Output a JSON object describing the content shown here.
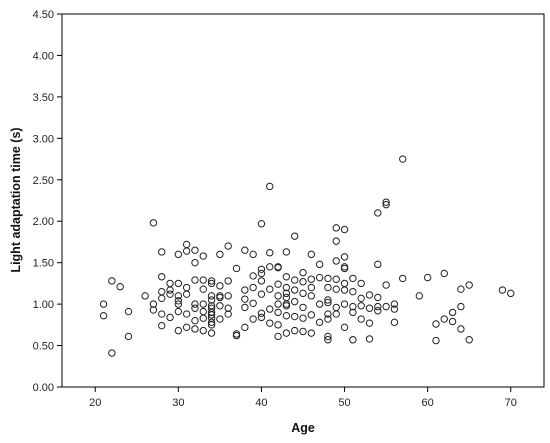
{
  "chart_data": {
    "type": "scatter",
    "title": "",
    "xlabel": "Age",
    "ylabel": "Light adaptation time (s)",
    "xlim": [
      16,
      74
    ],
    "ylim": [
      0,
      4.5
    ],
    "xticks": [
      20,
      30,
      40,
      50,
      60,
      70
    ],
    "yticks": [
      "0.00",
      "0.50",
      "1.00",
      "1.50",
      "2.00",
      "2.50",
      "3.00",
      "3.50",
      "4.00",
      "4.50"
    ],
    "grid": false,
    "legend": "none",
    "colors": {
      "marker_stroke": "#222222",
      "axis": "#000000",
      "plot_background": "#ffffff"
    },
    "series": [
      {
        "x": [
          21,
          21,
          22,
          22,
          23,
          24,
          24,
          26,
          27,
          27,
          27,
          28,
          28,
          28,
          28,
          28,
          28,
          29,
          29,
          29,
          29,
          30,
          30,
          30,
          30,
          30,
          30,
          30,
          31,
          31,
          31,
          31,
          31,
          31,
          32,
          32,
          32,
          32,
          32,
          32,
          32,
          33,
          33,
          33,
          33,
          33,
          33,
          33,
          34,
          34,
          34,
          34,
          34,
          34,
          34,
          34,
          34,
          34,
          34,
          34,
          35,
          35,
          35,
          35,
          35,
          35,
          36,
          36,
          36,
          36,
          36,
          37,
          37,
          37,
          38,
          38,
          38,
          38,
          38,
          39,
          39,
          39,
          39,
          39,
          40,
          40,
          40,
          40,
          40,
          40,
          40,
          41,
          41,
          41,
          41,
          41,
          41,
          42,
          42,
          42,
          42,
          42,
          42,
          42,
          42,
          43,
          43,
          43,
          43,
          43,
          43,
          43,
          43,
          43,
          44,
          44,
          44,
          44,
          44,
          44,
          45,
          45,
          45,
          45,
          45,
          45,
          46,
          46,
          46,
          46,
          46,
          46,
          47,
          47,
          47,
          47,
          48,
          48,
          48,
          48,
          48,
          48,
          48,
          48,
          49,
          49,
          49,
          49,
          49,
          49,
          49,
          50,
          50,
          50,
          50,
          50,
          50,
          50,
          50,
          51,
          51,
          51,
          51,
          51,
          52,
          52,
          52,
          52,
          53,
          53,
          53,
          53,
          54,
          54,
          54,
          54,
          54,
          55,
          55,
          55,
          55,
          56,
          56,
          56,
          57,
          57,
          59,
          60,
          61,
          61,
          62,
          62,
          63,
          63,
          64,
          64,
          64,
          65,
          65,
          69,
          70
        ],
        "y": [
          1.0,
          0.86,
          1.28,
          0.41,
          1.21,
          0.91,
          0.61,
          1.1,
          1.98,
          1.0,
          0.93,
          1.63,
          1.33,
          1.15,
          1.07,
          0.88,
          0.74,
          1.25,
          1.17,
          1.12,
          0.84,
          1.6,
          1.25,
          1.1,
          1.04,
          1.0,
          0.91,
          0.68,
          1.72,
          1.64,
          1.2,
          1.12,
          0.88,
          0.72,
          1.65,
          1.5,
          1.29,
          1.0,
          0.95,
          0.8,
          0.7,
          1.58,
          1.29,
          1.18,
          1.0,
          0.91,
          0.83,
          0.68,
          1.28,
          1.25,
          1.1,
          1.05,
          0.98,
          0.95,
          0.9,
          0.87,
          0.83,
          0.78,
          0.75,
          0.65,
          1.6,
          1.22,
          1.1,
          1.08,
          0.98,
          0.82,
          1.7,
          1.28,
          1.1,
          0.95,
          0.88,
          1.43,
          0.62,
          0.64,
          1.65,
          1.17,
          1.06,
          0.96,
          0.72,
          1.6,
          1.34,
          1.2,
          1.01,
          0.82,
          1.97,
          1.42,
          1.37,
          1.28,
          1.12,
          0.89,
          0.84,
          2.42,
          1.62,
          1.45,
          1.18,
          0.94,
          0.77,
          1.45,
          1.44,
          1.24,
          1.1,
          1.0,
          0.9,
          0.75,
          0.61,
          1.63,
          1.33,
          1.2,
          1.13,
          1.08,
          1.0,
          0.98,
          0.86,
          0.65,
          1.82,
          1.29,
          1.17,
          1.03,
          0.85,
          0.68,
          1.38,
          1.27,
          1.13,
          0.96,
          0.83,
          0.67,
          1.6,
          1.3,
          1.2,
          1.1,
          0.87,
          0.65,
          1.48,
          1.32,
          1.0,
          0.78,
          1.31,
          1.2,
          1.05,
          1.02,
          0.88,
          0.82,
          0.61,
          0.57,
          1.92,
          1.76,
          1.52,
          1.3,
          1.18,
          0.96,
          0.88,
          1.9,
          1.57,
          1.45,
          1.43,
          1.25,
          1.17,
          1.0,
          0.72,
          1.31,
          1.15,
          0.97,
          0.9,
          0.57,
          1.25,
          1.07,
          0.98,
          0.82,
          1.11,
          0.95,
          0.77,
          0.58,
          2.1,
          1.48,
          1.08,
          0.97,
          0.92,
          2.23,
          2.2,
          1.23,
          0.97,
          1.0,
          0.94,
          0.78,
          2.75,
          1.31,
          1.1,
          1.32,
          0.76,
          0.56,
          1.37,
          0.82,
          0.9,
          0.79,
          0.7,
          1.18,
          0.97,
          1.23,
          0.57,
          1.17,
          1.13
        ]
      }
    ]
  }
}
